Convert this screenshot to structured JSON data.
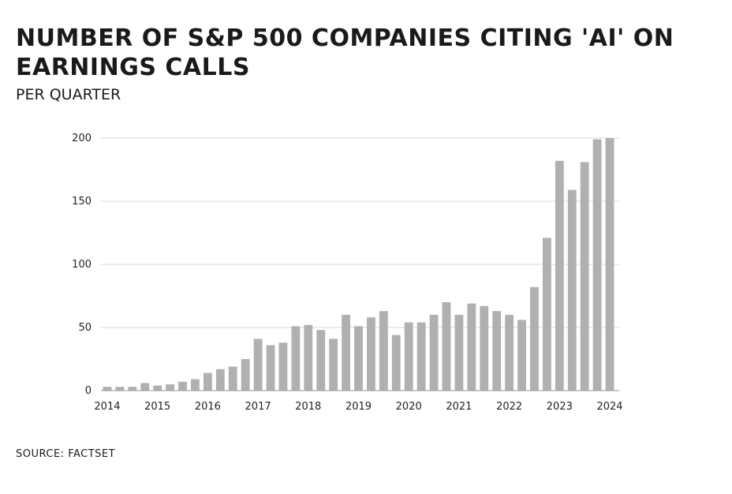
{
  "header": {
    "title": "Number of S&P 500 companies citing 'AI' on earnings calls",
    "subtitle": "Per quarter"
  },
  "footer": {
    "source": "Source: FactSet"
  },
  "colors": {
    "bar": "#b0b0b0",
    "grid": "#d9d9d9",
    "axis": "#999999"
  },
  "chart_data": {
    "type": "bar",
    "title": "Number of S&P 500 companies citing 'AI' on earnings calls",
    "subtitle": "Per quarter",
    "xlabel": "",
    "ylabel": "",
    "ylim": [
      0,
      200
    ],
    "yticks": [
      0,
      50,
      100,
      150,
      200
    ],
    "xticks": [
      "2014",
      "2015",
      "2016",
      "2017",
      "2018",
      "2019",
      "2020",
      "2021",
      "2022",
      "2023",
      "2024"
    ],
    "grid": true,
    "categories": [
      "2014 Q1",
      "2014 Q2",
      "2014 Q3",
      "2014 Q4",
      "2015 Q1",
      "2015 Q2",
      "2015 Q3",
      "2015 Q4",
      "2016 Q1",
      "2016 Q2",
      "2016 Q3",
      "2016 Q4",
      "2017 Q1",
      "2017 Q2",
      "2017 Q3",
      "2017 Q4",
      "2018 Q1",
      "2018 Q2",
      "2018 Q3",
      "2018 Q4",
      "2019 Q1",
      "2019 Q2",
      "2019 Q3",
      "2019 Q4",
      "2020 Q1",
      "2020 Q2",
      "2020 Q3",
      "2020 Q4",
      "2021 Q1",
      "2021 Q2",
      "2021 Q3",
      "2021 Q4",
      "2022 Q1",
      "2022 Q2",
      "2022 Q3",
      "2022 Q4",
      "2023 Q1",
      "2023 Q2",
      "2023 Q3",
      "2023 Q4",
      "2024 Q1"
    ],
    "values": [
      3,
      3,
      3,
      6,
      4,
      5,
      7,
      9,
      14,
      17,
      19,
      25,
      41,
      36,
      38,
      51,
      52,
      48,
      41,
      60,
      51,
      58,
      63,
      44,
      54,
      54,
      60,
      70,
      60,
      69,
      67,
      63,
      60,
      56,
      82,
      121,
      182,
      159,
      181,
      199,
      200
    ]
  }
}
